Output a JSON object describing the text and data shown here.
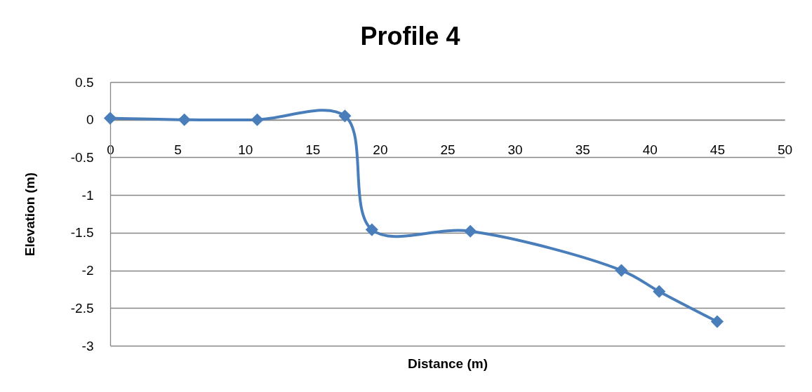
{
  "chart_data": {
    "type": "line",
    "title": "Profile 4",
    "xlabel": "Distance (m)",
    "ylabel": "Elevation (m)",
    "x": [
      0,
      5.5,
      10.9,
      17.4,
      19.4,
      26.7,
      37.9,
      40.7,
      45.0
    ],
    "series": [
      {
        "color": "#4a7ebb",
        "values": [
          0.02,
          0,
          0,
          0.05,
          -1.46,
          -1.48,
          -2.0,
          -2.28,
          -2.68
        ]
      }
    ],
    "xlim": [
      0,
      50
    ],
    "xticks": [
      0,
      5,
      10,
      15,
      20,
      25,
      30,
      35,
      40,
      45,
      50
    ],
    "ylim": [
      -3,
      0.5
    ],
    "yticks": [
      -3,
      -2.5,
      -2,
      -1.5,
      -1,
      -0.5,
      0,
      0.5
    ],
    "grid": "y",
    "marker": "diamond",
    "line_style": "solid"
  }
}
